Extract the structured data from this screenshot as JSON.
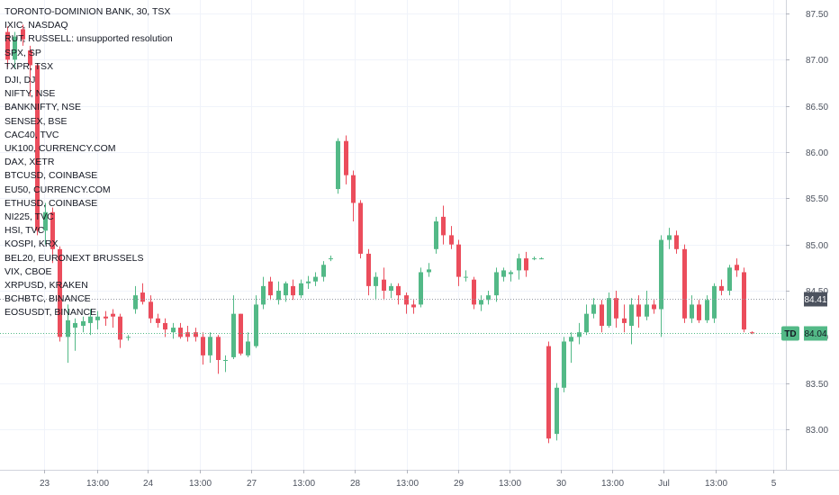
{
  "chart_data": {
    "type": "candlestick",
    "title": "TORONTO-DOMINION BANK, 30, TSX",
    "ticker": "TD",
    "last_price": 84.04,
    "crosshair_price": 84.41,
    "ylim": [
      82.65,
      87.65
    ],
    "y_ticks": [
      "87.50",
      "87.00",
      "86.50",
      "86.00",
      "85.50",
      "85.00",
      "84.50",
      "84.00",
      "83.50",
      "83.00"
    ],
    "x_ticks": [
      "23",
      "13:00",
      "24",
      "13:00",
      "27",
      "13:00",
      "28",
      "13:00",
      "29",
      "13:00",
      "30",
      "13:00",
      "Jul",
      "13:00",
      "5"
    ],
    "legend_lines": [
      "IXIC, NASDAQ",
      "RUT, RUSSELL: unsupported resolution",
      "SPX, SP",
      "TXPR, TSX",
      "DJI, DJ",
      "NIFTY, NSE",
      "BANKNIFTY, NSE",
      "SENSEX, BSE",
      "CAC40, TVC",
      "UK100, CURRENCY.COM",
      "DAX, XETR",
      "BTCUSD, COINBASE",
      "EU50, CURRENCY.COM",
      "ETHUSD, COINBASE",
      "NI225, TVC",
      "HSI, TVC",
      "KOSPI, KRX",
      "BEL20, EURONEXT BRUSSELS",
      "VIX, CBOE",
      "XRPUSD, KRAKEN",
      "BCHBTC, BINANCE",
      "EOSUSDT, BINANCE"
    ],
    "colors": {
      "up": "#53b987",
      "down": "#eb4d5c",
      "grid": "#f0f3fa",
      "axis_text": "#4c525e",
      "last_price_bg": "#53b987"
    },
    "candles": [
      [
        87.3,
        87.36,
        86.92,
        87.0
      ],
      [
        87.0,
        87.3,
        86.9,
        87.25
      ],
      [
        87.33,
        87.38,
        87.15,
        87.22
      ],
      [
        87.1,
        87.15,
        86.6,
        86.94
      ],
      [
        86.94,
        86.96,
        85.1,
        85.15
      ],
      [
        85.15,
        85.45,
        85.0,
        85.35
      ],
      [
        85.35,
        85.4,
        84.8,
        84.95
      ],
      [
        84.95,
        84.98,
        83.95,
        84.0
      ],
      [
        84.0,
        84.35,
        83.72,
        84.18
      ],
      [
        84.1,
        84.2,
        83.85,
        84.15
      ],
      [
        84.12,
        84.22,
        84.05,
        84.17
      ],
      [
        84.15,
        84.3,
        84.02,
        84.22
      ],
      [
        84.18,
        84.28,
        84.08,
        84.22
      ],
      [
        84.22,
        84.28,
        84.12,
        84.2
      ],
      [
        84.25,
        84.3,
        84.1,
        84.22
      ],
      [
        84.22,
        84.25,
        83.88,
        83.97
      ],
      [
        84.0,
        84.02,
        83.96,
        84.0
      ],
      [
        84.3,
        84.55,
        84.25,
        84.45
      ],
      [
        84.48,
        84.58,
        84.35,
        84.38
      ],
      [
        84.38,
        84.45,
        84.15,
        84.2
      ],
      [
        84.2,
        84.25,
        84.1,
        84.15
      ],
      [
        84.15,
        84.2,
        84.0,
        84.08
      ],
      [
        84.05,
        84.15,
        83.98,
        84.1
      ],
      [
        84.1,
        84.15,
        83.98,
        84.0
      ],
      [
        84.05,
        84.12,
        83.95,
        84.0
      ],
      [
        84.05,
        84.1,
        83.95,
        84.0
      ],
      [
        84.0,
        84.05,
        83.7,
        83.8
      ],
      [
        83.8,
        84.05,
        83.72,
        84.0
      ],
      [
        84.0,
        84.02,
        83.6,
        83.75
      ],
      [
        83.75,
        83.8,
        83.62,
        83.75
      ],
      [
        83.78,
        84.45,
        83.76,
        84.25
      ],
      [
        84.25,
        84.25,
        83.8,
        83.82
      ],
      [
        83.8,
        84.05,
        83.78,
        83.95
      ],
      [
        83.9,
        84.45,
        83.88,
        84.35
      ],
      [
        84.35,
        84.65,
        84.3,
        84.55
      ],
      [
        84.6,
        84.65,
        84.4,
        84.45
      ],
      [
        84.4,
        84.6,
        84.35,
        84.5
      ],
      [
        84.45,
        84.6,
        84.38,
        84.58
      ],
      [
        84.55,
        84.62,
        84.4,
        84.45
      ],
      [
        84.45,
        84.62,
        84.42,
        84.58
      ],
      [
        84.58,
        84.66,
        84.52,
        84.6
      ],
      [
        84.6,
        84.7,
        84.55,
        84.65
      ],
      [
        84.65,
        84.82,
        84.6,
        84.78
      ],
      [
        84.85,
        84.88,
        84.82,
        84.85
      ],
      [
        85.6,
        86.15,
        85.55,
        86.12
      ],
      [
        86.12,
        86.18,
        85.65,
        85.75
      ],
      [
        85.75,
        85.8,
        85.25,
        85.45
      ],
      [
        85.45,
        85.48,
        84.85,
        84.9
      ],
      [
        84.9,
        84.95,
        84.45,
        84.55
      ],
      [
        84.55,
        84.7,
        84.4,
        84.65
      ],
      [
        84.62,
        84.75,
        84.4,
        84.5
      ],
      [
        84.5,
        84.58,
        84.42,
        84.55
      ],
      [
        84.55,
        84.58,
        84.35,
        84.45
      ],
      [
        84.45,
        84.48,
        84.25,
        84.35
      ],
      [
        84.35,
        84.4,
        84.25,
        84.32
      ],
      [
        84.35,
        84.75,
        84.32,
        84.7
      ],
      [
        84.7,
        84.8,
        84.65,
        84.73
      ],
      [
        84.95,
        85.3,
        84.9,
        85.25
      ],
      [
        85.3,
        85.42,
        85.0,
        85.1
      ],
      [
        85.1,
        85.2,
        84.95,
        85.0
      ],
      [
        85.0,
        85.05,
        84.55,
        84.65
      ],
      [
        84.65,
        84.72,
        84.6,
        84.65
      ],
      [
        84.62,
        84.65,
        84.3,
        84.35
      ],
      [
        84.35,
        84.45,
        84.28,
        84.4
      ],
      [
        84.4,
        84.5,
        84.35,
        84.45
      ],
      [
        84.45,
        84.75,
        84.38,
        84.7
      ],
      [
        84.65,
        84.75,
        84.6,
        84.72
      ],
      [
        84.68,
        84.72,
        84.6,
        84.7
      ],
      [
        84.72,
        84.9,
        84.62,
        84.85
      ],
      [
        84.85,
        84.92,
        84.65,
        84.72
      ],
      [
        84.85,
        84.87,
        84.83,
        84.85
      ],
      [
        84.85,
        84.86,
        84.84,
        84.85
      ],
      [
        83.9,
        83.95,
        82.85,
        82.9
      ],
      [
        82.95,
        83.5,
        82.88,
        83.45
      ],
      [
        83.45,
        84.0,
        83.4,
        83.95
      ],
      [
        83.95,
        84.05,
        83.72,
        84.0
      ],
      [
        84.0,
        84.15,
        83.92,
        84.05
      ],
      [
        84.05,
        84.35,
        84.02,
        84.25
      ],
      [
        84.25,
        84.42,
        84.2,
        84.35
      ],
      [
        84.35,
        84.4,
        84.05,
        84.12
      ],
      [
        84.12,
        84.48,
        84.1,
        84.42
      ],
      [
        84.42,
        84.5,
        84.1,
        84.2
      ],
      [
        84.2,
        84.35,
        84.05,
        84.15
      ],
      [
        84.12,
        84.42,
        83.92,
        84.35
      ],
      [
        84.35,
        84.45,
        84.1,
        84.22
      ],
      [
        84.22,
        84.5,
        84.18,
        84.35
      ],
      [
        84.35,
        84.4,
        84.25,
        84.3
      ],
      [
        84.3,
        85.1,
        84.0,
        85.05
      ],
      [
        85.05,
        85.18,
        84.95,
        85.1
      ],
      [
        85.1,
        85.15,
        84.9,
        84.95
      ],
      [
        84.95,
        85.0,
        84.15,
        84.2
      ],
      [
        84.2,
        84.45,
        84.15,
        84.35
      ],
      [
        84.35,
        84.4,
        84.15,
        84.18
      ],
      [
        84.18,
        84.45,
        84.15,
        84.4
      ],
      [
        84.2,
        84.58,
        84.15,
        84.55
      ],
      [
        84.55,
        84.62,
        84.45,
        84.5
      ],
      [
        84.5,
        84.78,
        84.45,
        84.75
      ],
      [
        84.78,
        84.85,
        84.65,
        84.72
      ],
      [
        84.7,
        84.75,
        84.05,
        84.08
      ],
      [
        84.05,
        84.06,
        84.03,
        84.04
      ]
    ]
  }
}
